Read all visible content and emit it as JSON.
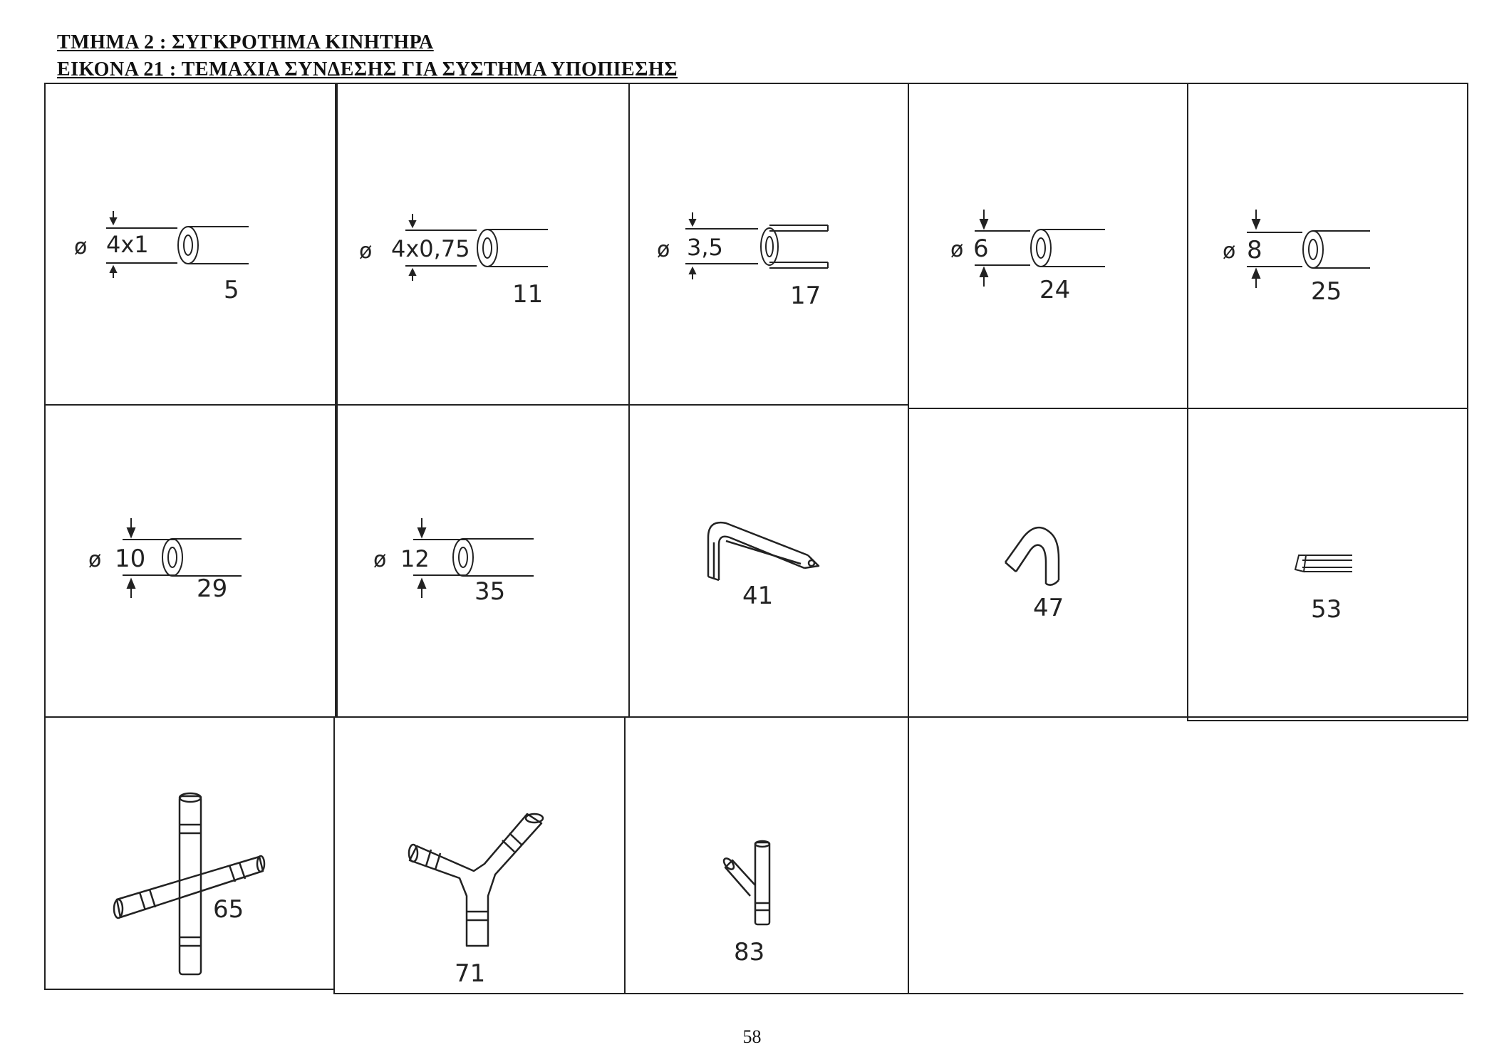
{
  "header": {
    "section": "ΤΜΗΜΑ  2  :  ΣΥΓΚΡΟΤΗΜΑ ΚΙΝΗΤΗΡΑ",
    "figure": "ΕΙΚΟΝΑ 21 : ΤΕΜΑΧΙΑ ΣΥΝΔΕΣΗΣ ΓΙΑ ΣΥΣΤΗΜΑ ΥΠΟΠΙΕΣΗΣ"
  },
  "parts": [
    {
      "number": "5",
      "diameter": "4x1",
      "shape": "tube-icon"
    },
    {
      "number": "11",
      "diameter": "4x0,75",
      "shape": "tube-icon"
    },
    {
      "number": "17",
      "diameter": "3,5",
      "shape": "tube-icon"
    },
    {
      "number": "24",
      "diameter": "6",
      "shape": "tube-icon"
    },
    {
      "number": "25",
      "diameter": "8",
      "shape": "tube-icon"
    },
    {
      "number": "29",
      "diameter": "10",
      "shape": "tube-icon"
    },
    {
      "number": "35",
      "diameter": "12",
      "shape": "tube-icon"
    },
    {
      "number": "41",
      "diameter": "",
      "shape": "bent-tube-icon"
    },
    {
      "number": "47",
      "diameter": "",
      "shape": "elbow-hose-icon"
    },
    {
      "number": "53",
      "diameter": "",
      "shape": "tube-section-icon"
    },
    {
      "number": "65",
      "diameter": "",
      "shape": "cross-connector-icon"
    },
    {
      "number": "71",
      "diameter": "",
      "shape": "y-connector-icon"
    },
    {
      "number": "83",
      "diameter": "",
      "shape": "small-y-connector-icon"
    }
  ],
  "diameter_symbol": "ø",
  "page_number": "58"
}
